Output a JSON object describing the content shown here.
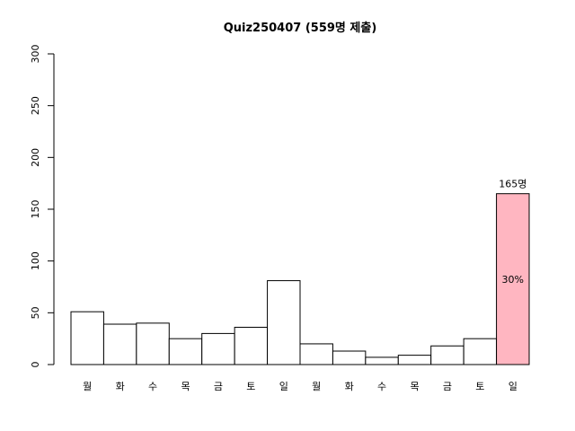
{
  "chart_data": {
    "type": "bar",
    "title": "Quiz250407 (559명 제출)",
    "xlabel": "",
    "ylabel": "",
    "ylim": [
      0,
      300
    ],
    "yticks": [
      0,
      50,
      100,
      150,
      200,
      250,
      300
    ],
    "categories": [
      "월",
      "화",
      "수",
      "목",
      "금",
      "토",
      "일",
      "월",
      "화",
      "수",
      "목",
      "금",
      "토",
      "일"
    ],
    "values": [
      51,
      39,
      40,
      25,
      30,
      36,
      81,
      20,
      13,
      7,
      9,
      18,
      25,
      165
    ],
    "highlight_index": 13,
    "highlight_top_label": "165명",
    "highlight_mid_label": "30%",
    "bar_color": "#ffffff",
    "highlight_color": "#ffb6c1",
    "grid": false,
    "legend": "none"
  }
}
